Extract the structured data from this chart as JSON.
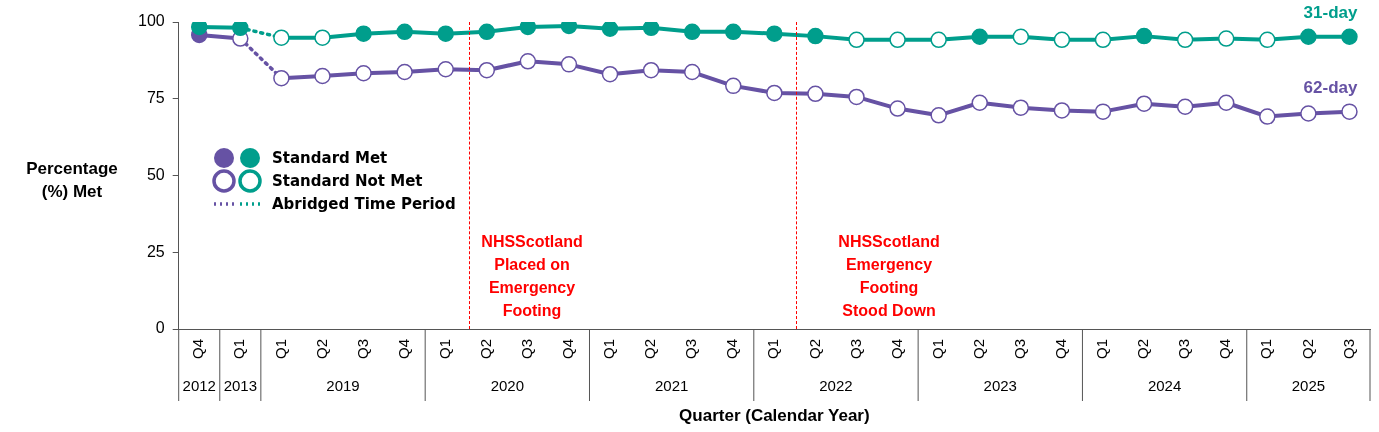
{
  "chart_data": {
    "type": "line",
    "xlabel": "Quarter (Calendar Year)",
    "ylabel": "Percentage (%) Met",
    "categories": [
      "Q4",
      "Q1",
      "Q1",
      "Q2",
      "Q3",
      "Q4",
      "Q1",
      "Q2",
      "Q3",
      "Q4",
      "Q1",
      "Q2",
      "Q3",
      "Q4",
      "Q1",
      "Q2",
      "Q3",
      "Q4",
      "Q1",
      "Q2",
      "Q3",
      "Q4",
      "Q1",
      "Q2",
      "Q3",
      "Q4",
      "Q1",
      "Q2",
      "Q3"
    ],
    "ylim": [
      0,
      100
    ],
    "yticks": [
      0,
      25,
      50,
      75,
      100
    ],
    "marker": "circle",
    "line_style": "solid",
    "series": [
      {
        "name": "31-day",
        "color": "#009e8c",
        "values": [
          null,
          null,
          94.9,
          94.9,
          96.2,
          96.8,
          96.2,
          96.8,
          98.4,
          98.7,
          97.8,
          98.1,
          96.8,
          96.8,
          96.2,
          95.4,
          94.2,
          94.2,
          94.2,
          95.2,
          95.2,
          94.2,
          94.2,
          95.4,
          94.2,
          94.6,
          94.2,
          95.2,
          95.2
        ],
        "colors": [
          null,
          null,
          "#ffffff",
          "#ffffff",
          "#009e8c",
          "#009e8c",
          "#009e8c",
          "#009e8c",
          "#009e8c",
          "#009e8c",
          "#009e8c",
          "#009e8c",
          "#009e8c",
          "#009e8c",
          "#009e8c",
          "#009e8c",
          "#ffffff",
          "#ffffff",
          "#ffffff",
          "#009e8c",
          "#ffffff",
          "#ffffff",
          "#ffffff",
          "#009e8c",
          "#ffffff",
          "#ffffff",
          "#ffffff",
          "#009e8c",
          "#009e8c"
        ]
      },
      {
        "color": "#009e8c",
        "values": [
          98.4,
          98.1,
          null,
          null,
          null,
          null,
          null,
          null,
          null,
          null,
          null,
          null,
          null,
          null,
          null,
          null,
          null,
          null,
          null,
          null,
          null,
          null,
          null,
          null,
          null,
          null,
          null,
          null,
          null
        ],
        "colors": [
          "#009e8c",
          "#009e8c",
          null,
          null,
          null,
          null,
          null,
          null,
          null,
          null,
          null,
          null,
          null,
          null,
          null,
          null,
          null,
          null,
          null,
          null,
          null,
          null,
          null,
          null,
          null,
          null,
          null,
          null,
          null
        ]
      },
      {
        "color": "#009e8c",
        "line_style": "dotted",
        "marker": "none",
        "values": [
          null,
          98.1,
          94.9,
          null,
          null,
          null,
          null,
          null,
          null,
          null,
          null,
          null,
          null,
          null,
          null,
          null,
          null,
          null,
          null,
          null,
          null,
          null,
          null,
          null,
          null,
          null,
          null,
          null,
          null
        ]
      },
      {
        "name": "62-day",
        "color": "#6652a4",
        "values": [
          null,
          null,
          81.7,
          82.4,
          83.3,
          83.7,
          84.6,
          84.3,
          87.2,
          86.2,
          83.0,
          84.3,
          83.7,
          79.2,
          76.9,
          76.6,
          75.6,
          71.8,
          69.6,
          73.7,
          72.1,
          71.2,
          70.8,
          73.4,
          72.4,
          73.7,
          69.2,
          70.2,
          70.8
        ],
        "colors": [
          null,
          null,
          "#ffffff",
          "#ffffff",
          "#ffffff",
          "#ffffff",
          "#ffffff",
          "#ffffff",
          "#ffffff",
          "#ffffff",
          "#ffffff",
          "#ffffff",
          "#ffffff",
          "#ffffff",
          "#ffffff",
          "#ffffff",
          "#ffffff",
          "#ffffff",
          "#ffffff",
          "#ffffff",
          "#ffffff",
          "#ffffff",
          "#ffffff",
          "#ffffff",
          "#ffffff",
          "#ffffff",
          "#ffffff",
          "#ffffff",
          "#ffffff"
        ]
      },
      {
        "color": "#6652a4",
        "values": [
          95.8,
          94.6,
          null,
          null,
          null,
          null,
          null,
          null,
          null,
          null,
          null,
          null,
          null,
          null,
          null,
          null,
          null,
          null,
          null,
          null,
          null,
          null,
          null,
          null,
          null,
          null,
          null,
          null,
          null
        ],
        "colors": [
          "#6652a4",
          "#ffffff",
          null,
          null,
          null,
          null,
          null,
          null,
          null,
          null,
          null,
          null,
          null,
          null,
          null,
          null,
          null,
          null,
          null,
          null,
          null,
          null,
          null,
          null,
          null,
          null,
          null,
          null,
          null
        ]
      },
      {
        "color": "#6652a4",
        "line_style": "dotted",
        "marker": "none",
        "values": [
          null,
          94.6,
          81.7,
          null,
          null,
          null,
          null,
          null,
          null,
          null,
          null,
          null,
          null,
          null,
          null,
          null,
          null,
          null,
          null,
          null,
          null,
          null,
          null,
          null,
          null,
          null,
          null,
          null,
          null
        ]
      }
    ],
    "annotations": [
      "Standard Met",
      "Standard Not Met",
      "Abridged Time Period",
      "2012",
      "2013",
      "2019",
      "2020",
      "2021",
      "2022",
      "2023",
      "2024",
      "2025",
      "NHSScotland\nPlaced on\nEmergency\nFooting",
      "NHSScotland\nEmergency\nFooting\nStood Down"
    ]
  }
}
